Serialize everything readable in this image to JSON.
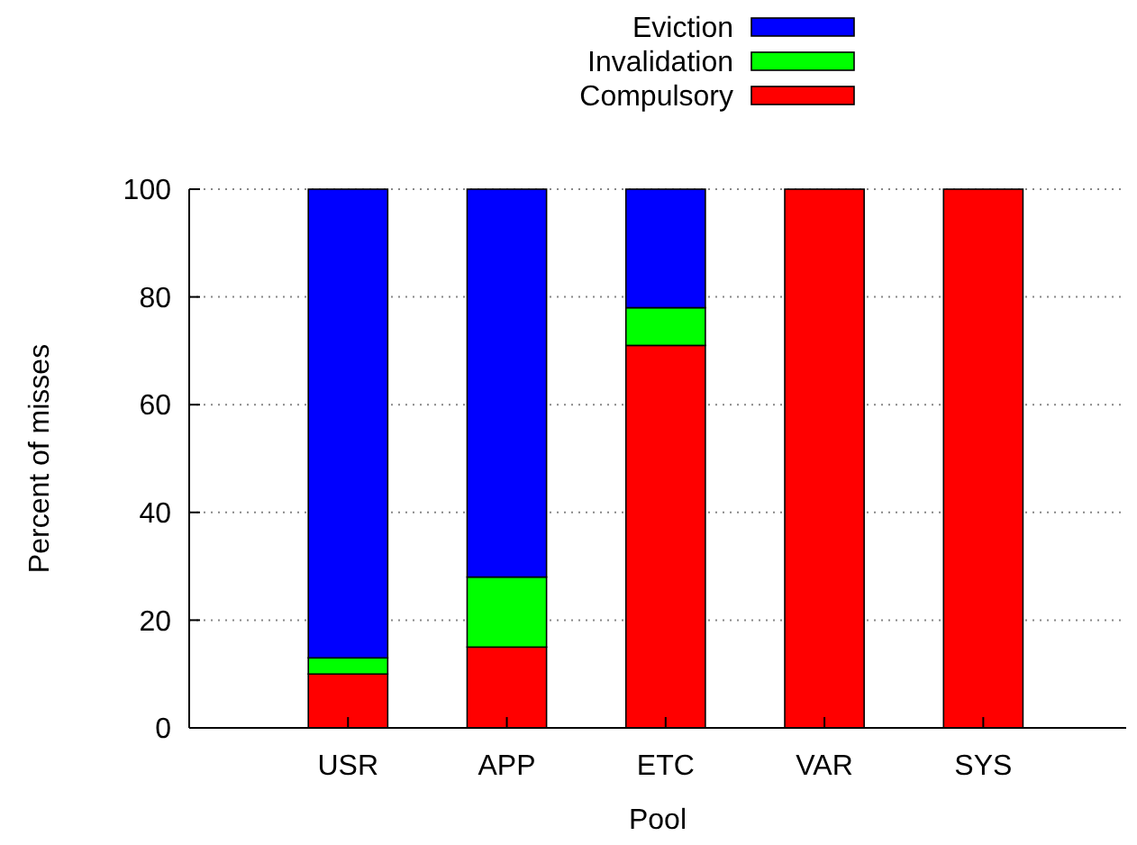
{
  "chart_data": {
    "type": "bar",
    "stacked": true,
    "xlabel": "Pool",
    "ylabel": "Percent of misses",
    "categories": [
      "USR",
      "APP",
      "ETC",
      "VAR",
      "SYS"
    ],
    "series": [
      {
        "name": "Compulsory",
        "color": "#ff0000",
        "values": [
          10,
          15,
          71,
          100,
          100
        ]
      },
      {
        "name": "Invalidation",
        "color": "#00ff00",
        "values": [
          3,
          13,
          7,
          0,
          0
        ]
      },
      {
        "name": "Eviction",
        "color": "#0000ff",
        "values": [
          87,
          72,
          22,
          0,
          0
        ]
      }
    ],
    "ylim": [
      0,
      100
    ],
    "yticks": [
      0,
      20,
      40,
      60,
      80,
      100
    ],
    "grid": "y",
    "legend": "top"
  }
}
